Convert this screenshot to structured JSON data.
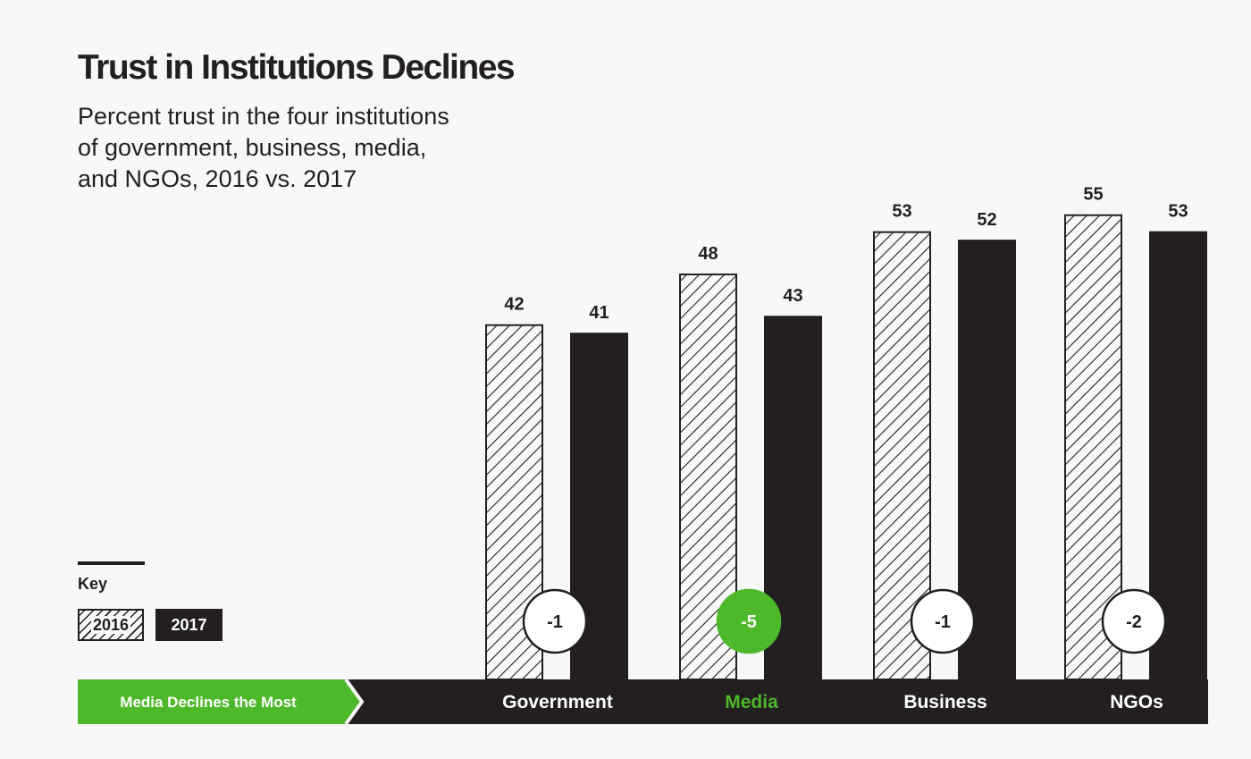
{
  "header": {
    "title": "Trust in Institutions Declines",
    "subtitle_lines": [
      "Percent trust in the four institutions",
      "of government, business, media,",
      "and NGOs, 2016 vs. 2017"
    ]
  },
  "key": {
    "title": "Key",
    "items": [
      "2016",
      "2017"
    ]
  },
  "banner": {
    "label": "Media Declines the Most"
  },
  "colors": {
    "accent": "#4cb82a",
    "dark": "#231f20",
    "background": "#f8f8f8"
  },
  "chart_data": {
    "type": "bar",
    "categories": [
      "Government",
      "Media",
      "Business",
      "NGOs"
    ],
    "series": [
      {
        "name": "2016",
        "values": [
          42,
          48,
          53,
          55
        ]
      },
      {
        "name": "2017",
        "values": [
          41,
          43,
          52,
          53
        ]
      }
    ],
    "changes": [
      "-1",
      "-5",
      "-1",
      "-2"
    ],
    "highlight_category": "Media",
    "ylim": [
      0,
      74
    ],
    "legend": "bottom-left",
    "grid": false
  }
}
